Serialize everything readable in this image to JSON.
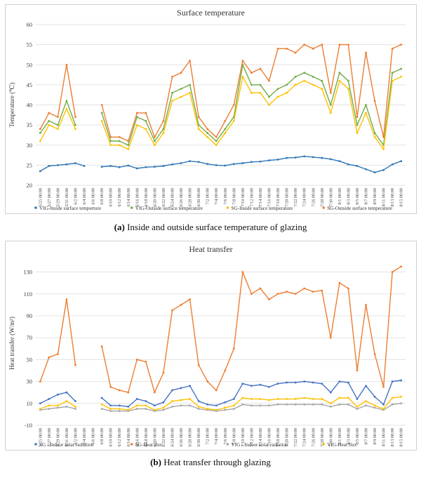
{
  "captions": {
    "a_letter": "(a)",
    "a_text": " Inside and outside surface temperature of glazing",
    "b_letter": "(b)",
    "b_text": " Heat transfer through glazing"
  },
  "chart_data": [
    {
      "type": "line",
      "title": "Surface temperature",
      "xlabel": "",
      "ylabel": "Temperature (℃)",
      "ylim": [
        20,
        60
      ],
      "yticks": [
        20,
        25,
        30,
        35,
        40,
        45,
        50,
        55,
        60
      ],
      "grid": true,
      "legend_position": "bottom",
      "x_ticks": [
        "5/25 00:00",
        "5/27 00:00",
        "5/29 00:00",
        "5/31 00:00",
        "6/2 00:00",
        "6/4 00:00",
        "6/6 00:00",
        "6/8 00:00",
        "6/10 00:00",
        "6/12 00:00",
        "6/14 00:00",
        "6/16 00:00",
        "6/18 00:00",
        "6/20 00:00",
        "6/22 00:00",
        "6/24 00:00",
        "6/26 00:00",
        "6/28 00:00",
        "6/30 00:00",
        "7/2 00:00",
        "7/4 00:00",
        "7/6 00:00",
        "7/8 00:00",
        "7/10 00:00",
        "7/12 00:00",
        "7/14 00:00",
        "7/16 00:00",
        "7/18 00:00",
        "7/20 00:00",
        "7/22 00:00",
        "7/24 00:00",
        "7/26 00:00",
        "7/28 00:00",
        "7/30 00:00",
        "8/1 00:00",
        "8/3 00:00",
        "8/5 00:00",
        "8/7 00:00",
        "8/9 00:00",
        "8/11 00:00",
        "8/13 00:00",
        "8/15 00:00"
      ],
      "series": [
        {
          "name": "VIG-Inside surface temperture",
          "color": "#2e75b6",
          "values": [
            23.5,
            24.8,
            25.0,
            25.2,
            25.5,
            24.8,
            null,
            24.6,
            24.8,
            24.5,
            24.9,
            24.2,
            24.5,
            24.6,
            24.8,
            25.2,
            25.5,
            26.0,
            25.8,
            25.3,
            25.0,
            24.9,
            25.3,
            25.5,
            25.8,
            25.9,
            26.2,
            26.4,
            26.8,
            26.9,
            27.2,
            27.0,
            26.8,
            26.5,
            26.0,
            25.2,
            24.8,
            24.0,
            23.2,
            23.8,
            25.2,
            26.0
          ]
        },
        {
          "name": "VIG-Outside surface temperature",
          "color": "#70ad47",
          "values": [
            33,
            36,
            35,
            41,
            35,
            null,
            null,
            38,
            31,
            31,
            30,
            37,
            36,
            31,
            34,
            43,
            44,
            45,
            35,
            33,
            31,
            34,
            37,
            50,
            45,
            45,
            42,
            44,
            45,
            47,
            48,
            47,
            46,
            40,
            48,
            46,
            35,
            40,
            33,
            30,
            48,
            49
          ]
        },
        {
          "name": "SG-Inside surface temperature",
          "color": "#ffc000",
          "values": [
            31,
            35,
            34,
            39,
            34,
            null,
            null,
            36,
            30,
            30,
            29,
            35,
            34,
            30,
            33,
            41,
            42,
            43,
            34,
            32,
            30,
            33,
            36,
            47,
            43,
            43,
            40,
            42,
            43,
            45,
            46,
            45,
            44,
            38,
            46,
            44,
            33,
            38,
            32,
            29,
            46,
            47
          ]
        },
        {
          "name": "SG-Outside surface temperature",
          "color": "#ed7d31",
          "values": [
            34,
            38,
            37,
            50,
            37,
            null,
            null,
            40,
            32,
            32,
            31,
            38,
            38,
            32,
            36,
            47,
            48,
            51,
            37,
            34,
            32,
            36,
            40,
            51,
            48,
            49,
            46,
            54,
            54,
            53,
            55,
            54,
            55,
            43,
            55,
            55,
            37,
            53,
            41,
            32,
            54,
            55
          ]
        }
      ]
    },
    {
      "type": "line",
      "title": "Heat transfer",
      "xlabel": "",
      "ylabel": "Heat transfer (W/m²)",
      "ylim": [
        -10,
        140
      ],
      "yticks": [
        -10,
        10,
        30,
        50,
        70,
        90,
        110,
        130
      ],
      "grid": true,
      "legend_position": "bottom",
      "x_ticks": [
        "5/25 00:00",
        "5/27 00:00",
        "5/29 00:00",
        "5/31 00:00",
        "6/2 00:00",
        "6/4 00:00",
        "6/6 00:00",
        "6/8 00:00",
        "6/10 00:00",
        "6/12 00:00",
        "6/14 00:00",
        "6/16 00:00",
        "6/18 00:00",
        "6/20 00:00",
        "6/22 00:00",
        "6/24 00:00",
        "6/26 00:00",
        "6/28 00:00",
        "6/30 00:00",
        "7/2 00:00",
        "7/4 00:00",
        "7/6 00:00",
        "7/8 00:00",
        "7/10 00:00",
        "7/12 00:00",
        "7/14 00:00",
        "7/16 00:00",
        "7/18 00:00",
        "7/20 00:00",
        "7/22 00:00",
        "7/24 00:00",
        "7/26 00:00",
        "7/28 00:00",
        "7/30 00:00",
        "8/1 00:00",
        "8/3 00:00",
        "8/5 00:00",
        "8/7 00:00",
        "8/9 00:00",
        "8/11 00:00",
        "8/13 00:00",
        "8/15 00:00"
      ],
      "series": [
        {
          "name": "SG - Indoor solar radiation",
          "color": "#4472c4",
          "values": [
            10,
            14,
            18,
            20,
            12,
            null,
            null,
            15,
            8,
            8,
            7,
            14,
            12,
            8,
            11,
            22,
            24,
            26,
            12,
            9,
            8,
            11,
            14,
            28,
            26,
            27,
            25,
            28,
            29,
            29,
            30,
            29,
            28,
            20,
            30,
            29,
            14,
            26,
            16,
            9,
            30,
            31
          ]
        },
        {
          "name": "SG-Heat flux",
          "color": "#ed7d31",
          "values": [
            30,
            52,
            55,
            105,
            45,
            null,
            null,
            62,
            25,
            22,
            20,
            50,
            48,
            20,
            38,
            95,
            100,
            105,
            45,
            30,
            22,
            40,
            60,
            130,
            110,
            115,
            105,
            110,
            112,
            110,
            115,
            112,
            113,
            70,
            120,
            115,
            40,
            100,
            55,
            25,
            130,
            135
          ]
        },
        {
          "name": "VIG - Indoor solar radiation",
          "color": "#a5a5a5",
          "values": [
            4,
            5,
            6,
            7,
            5,
            null,
            null,
            5,
            3,
            3,
            3,
            5,
            5,
            3,
            4,
            7,
            8,
            8,
            5,
            4,
            3,
            4,
            5,
            9,
            8,
            8,
            8,
            9,
            9,
            9,
            9,
            9,
            9,
            7,
            9,
            9,
            5,
            8,
            6,
            4,
            9,
            10
          ]
        },
        {
          "name": "VIG-Heat flux",
          "color": "#ffc000",
          "values": [
            5,
            8,
            8,
            12,
            7,
            null,
            null,
            9,
            5,
            5,
            4,
            8,
            8,
            4,
            6,
            12,
            13,
            14,
            7,
            5,
            4,
            6,
            8,
            15,
            14,
            14,
            13,
            14,
            14,
            14,
            15,
            14,
            14,
            10,
            15,
            15,
            7,
            12,
            8,
            5,
            15,
            16
          ]
        }
      ]
    }
  ]
}
